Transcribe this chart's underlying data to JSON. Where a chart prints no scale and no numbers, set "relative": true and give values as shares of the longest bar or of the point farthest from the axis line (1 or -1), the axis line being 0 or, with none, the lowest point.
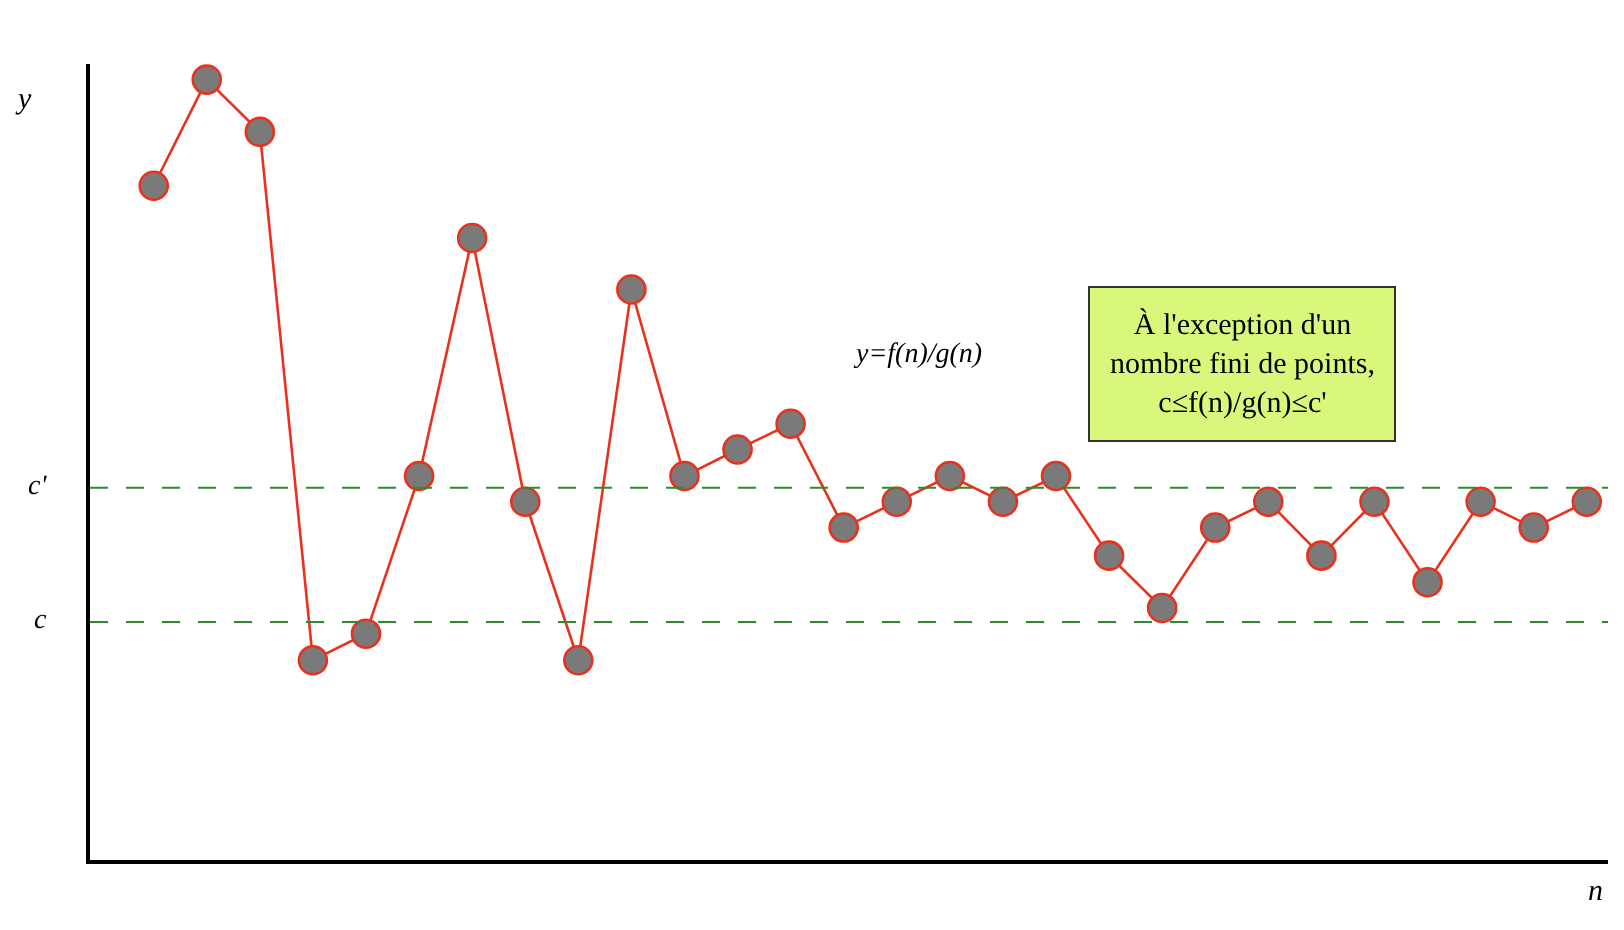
{
  "chart_data": {
    "type": "line",
    "relative": true,
    "xlabel": "n",
    "ylabel": "y",
    "categories": [
      null,
      null,
      null,
      null,
      null,
      null,
      null,
      null,
      null,
      null,
      null,
      null,
      null,
      null,
      null,
      null,
      null,
      null,
      null,
      null,
      null,
      null,
      null,
      null,
      null,
      null,
      null,
      null
    ],
    "series": [
      {
        "color": "#e8321e",
        "values": [
          0.864,
          1,
          0.933,
          0.256,
          0.29,
          0.492,
          0.797,
          0.459,
          0.256,
          0.731,
          0.492,
          0.526,
          0.559,
          0.426,
          0.459,
          0.492,
          0.459,
          0.492,
          0.39,
          0.323,
          0.426,
          0.459,
          0.39,
          0.459,
          0.356,
          0.459,
          0.426,
          0.459
        ]
      }
    ],
    "marker": "circle",
    "line_style": "solid",
    "legend": false,
    "ref_lines": [
      {
        "axis": "y",
        "value": 0.477,
        "label": "c'",
        "color": "#2e8b2e",
        "line_style": "dashed"
      },
      {
        "axis": "y",
        "value": 0.305,
        "label": "c",
        "color": "#2e8b2e",
        "line_style": "dashed"
      }
    ],
    "annotations": [
      "y=f(n)/g(n)",
      "À l'exception d'un nombre fini de points, c≤f(n)/g(n)≤c'"
    ]
  }
}
